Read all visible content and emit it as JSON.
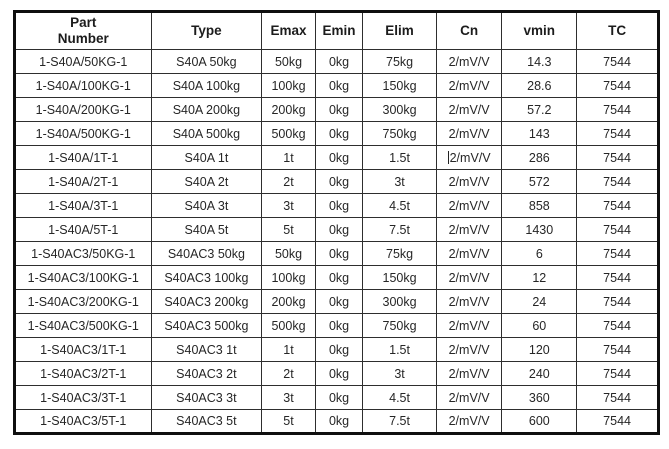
{
  "page": {
    "background": "#ffffff"
  },
  "table": {
    "name": "load-cell-spec-table",
    "outer_border_color": "#0f0f0f",
    "grid_color": "#2e2e2e",
    "text_color": "#262626",
    "columns": [
      {
        "key": "part-number",
        "label": "Part\nNumber",
        "width_pct": 21.2
      },
      {
        "key": "type",
        "label": "Type",
        "width_pct": 17.2
      },
      {
        "key": "emax",
        "label": "Emax",
        "width_pct": 8.3
      },
      {
        "key": "emin",
        "label": "Emin",
        "width_pct": 7.4
      },
      {
        "key": "elim",
        "label": "Elim",
        "width_pct": 11.4
      },
      {
        "key": "cn",
        "label": "Cn",
        "width_pct": 10.2
      },
      {
        "key": "vmin",
        "label": "vmin",
        "width_pct": 11.6
      },
      {
        "key": "tc",
        "label": "TC",
        "width_pct": 12.7
      }
    ],
    "rows": [
      [
        "1-S40A/50KG-1",
        "S40A 50kg",
        "50kg",
        "0kg",
        "75kg",
        "2/mV/V",
        "14.3",
        "7544"
      ],
      [
        "1-S40A/100KG-1",
        "S40A 100kg",
        "100kg",
        "0kg",
        "150kg",
        "2/mV/V",
        "28.6",
        "7544"
      ],
      [
        "1-S40A/200KG-1",
        "S40A 200kg",
        "200kg",
        "0kg",
        "300kg",
        "2/mV/V",
        "57.2",
        "7544"
      ],
      [
        "1-S40A/500KG-1",
        "S40A 500kg",
        "500kg",
        "0kg",
        "750kg",
        "2/mV/V",
        "143",
        "7544"
      ],
      [
        "1-S40A/1T-1",
        "S40A 1t",
        "1t",
        "0kg",
        "1.5t",
        "2/mV/V",
        "286",
        "7544"
      ],
      [
        "1-S40A/2T-1",
        "S40A 2t",
        "2t",
        "0kg",
        "3t",
        "2/mV/V",
        "572",
        "7544"
      ],
      [
        "1-S40A/3T-1",
        "S40A 3t",
        "3t",
        "0kg",
        "4.5t",
        "2/mV/V",
        "858",
        "7544"
      ],
      [
        "1-S40A/5T-1",
        "S40A 5t",
        "5t",
        "0kg",
        "7.5t",
        "2/mV/V",
        "1430",
        "7544"
      ],
      [
        "1-S40AC3/50KG-1",
        "S40AC3 50kg",
        "50kg",
        "0kg",
        "75kg",
        "2/mV/V",
        "6",
        "7544"
      ],
      [
        "1-S40AC3/100KG-1",
        "S40AC3 100kg",
        "100kg",
        "0kg",
        "150kg",
        "2/mV/V",
        "12",
        "7544"
      ],
      [
        "1-S40AC3/200KG-1",
        "S40AC3 200kg",
        "200kg",
        "0kg",
        "300kg",
        "2/mV/V",
        "24",
        "7544"
      ],
      [
        "1-S40AC3/500KG-1",
        "S40AC3 500kg",
        "500kg",
        "0kg",
        "750kg",
        "2/mV/V",
        "60",
        "7544"
      ],
      [
        "1-S40AC3/1T-1",
        "S40AC3 1t",
        "1t",
        "0kg",
        "1.5t",
        "2/mV/V",
        "120",
        "7544"
      ],
      [
        "1-S40AC3/2T-1",
        "S40AC3 2t",
        "2t",
        "0kg",
        "3t",
        "2/mV/V",
        "240",
        "7544"
      ],
      [
        "1-S40AC3/3T-1",
        "S40AC3 3t",
        "3t",
        "0kg",
        "4.5t",
        "2/mV/V",
        "360",
        "7544"
      ],
      [
        "1-S40AC3/5T-1",
        "S40AC3 5t",
        "5t",
        "0kg",
        "7.5t",
        "2/mV/V",
        "600",
        "7544"
      ]
    ],
    "caret_cell": {
      "row_index": 4,
      "col_index": 5
    }
  }
}
